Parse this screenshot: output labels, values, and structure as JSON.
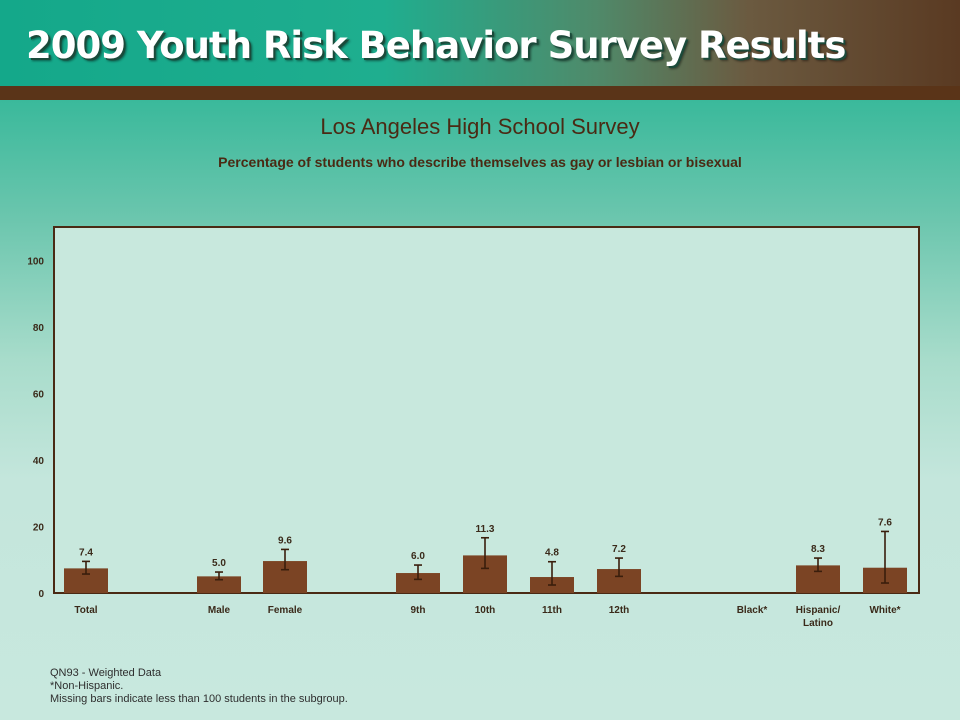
{
  "header": {
    "title": "2009 Youth Risk Behavior Survey Results"
  },
  "chart_data": {
    "type": "bar",
    "title": "Los Angeles High School Survey",
    "subtitle": "Percentage of students who describe themselves as gay or lesbian or bisexual",
    "ylim": [
      0,
      110
    ],
    "yticks": [
      0,
      20,
      40,
      60,
      80,
      100
    ],
    "grid": false,
    "legend": "none",
    "categories": [
      "Total",
      "Male",
      "Female",
      "9th",
      "10th",
      "11th",
      "12th",
      "Black*",
      "Hispanic/ Latino",
      "White*"
    ],
    "category_lines": [
      [
        "Total"
      ],
      [
        "Male"
      ],
      [
        "Female"
      ],
      [
        "9th"
      ],
      [
        "10th"
      ],
      [
        "11th"
      ],
      [
        "12th"
      ],
      [
        "Black*"
      ],
      [
        "Hispanic/",
        "Latino"
      ],
      [
        "White*"
      ]
    ],
    "groups": [
      [
        "Total"
      ],
      [
        "Male",
        "Female"
      ],
      [
        "9th",
        "10th",
        "11th",
        "12th"
      ],
      [
        "Black*",
        "Hispanic/ Latino",
        "White*"
      ]
    ],
    "values": [
      7.4,
      5.0,
      9.6,
      6.0,
      11.3,
      4.8,
      7.2,
      null,
      8.3,
      7.6
    ],
    "value_labels": [
      "7.4",
      "5.0",
      "9.6",
      "6.0",
      "11.3",
      "4.8",
      "7.2",
      "",
      "8.3",
      "7.6"
    ],
    "ci_low": [
      5.7,
      4.0,
      7.0,
      4.1,
      7.4,
      2.4,
      5.0,
      null,
      6.5,
      3.0
    ],
    "ci_high": [
      9.5,
      6.3,
      13.1,
      8.4,
      16.6,
      9.4,
      10.5,
      null,
      10.5,
      18.5
    ],
    "colors": {
      "bar": "#7b4424",
      "error": "#3a1e0c",
      "plot_bg": "#c8e8dd",
      "plot_border": "#4a2a14"
    }
  },
  "notes": [
    "QN93 - Weighted Data",
    "*Non-Hispanic.",
    "Missing bars indicate less than 100 students in the subgroup."
  ]
}
